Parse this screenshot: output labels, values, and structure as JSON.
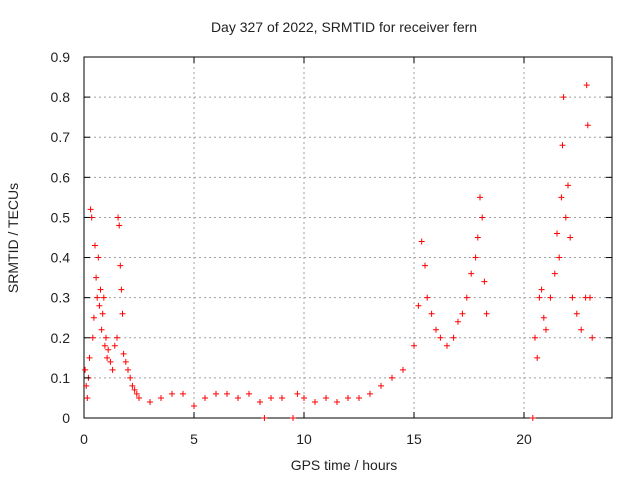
{
  "chart_data": {
    "type": "scatter",
    "title": "Day 327 of 2022, SRMTID for receiver fern",
    "xlabel": "GPS time / hours",
    "ylabel": "SRMTID / TECUs",
    "xlim": [
      0,
      24
    ],
    "ylim": [
      0,
      0.9
    ],
    "x_ticks": [
      0,
      5,
      10,
      15,
      20
    ],
    "x_tick_labels": [
      "0",
      "5",
      "10",
      "15",
      "20"
    ],
    "y_ticks": [
      0,
      0.1,
      0.2,
      0.3,
      0.4,
      0.5,
      0.6,
      0.7,
      0.8,
      0.9
    ],
    "y_tick_labels": [
      "0",
      "0.1",
      "0.2",
      "0.3",
      "0.4",
      "0.5",
      "0.6",
      "0.7",
      "0.8",
      "0.9"
    ],
    "grid": true,
    "marker": "+",
    "colors": {
      "series": "#ff0000",
      "grid": "#a0a0a0",
      "axis": "#000000"
    },
    "series": [
      {
        "name": "SRMTID",
        "points": [
          [
            0.05,
            0.12
          ],
          [
            0.1,
            0.08
          ],
          [
            0.15,
            0.05
          ],
          [
            0.2,
            0.1
          ],
          [
            0.25,
            0.15
          ],
          [
            0.3,
            0.52
          ],
          [
            0.35,
            0.5
          ],
          [
            0.4,
            0.2
          ],
          [
            0.45,
            0.25
          ],
          [
            0.5,
            0.43
          ],
          [
            0.55,
            0.35
          ],
          [
            0.6,
            0.3
          ],
          [
            0.65,
            0.4
          ],
          [
            0.7,
            0.28
          ],
          [
            0.75,
            0.32
          ],
          [
            0.8,
            0.22
          ],
          [
            0.85,
            0.26
          ],
          [
            0.9,
            0.3
          ],
          [
            0.95,
            0.18
          ],
          [
            1.0,
            0.2
          ],
          [
            1.05,
            0.15
          ],
          [
            1.1,
            0.17
          ],
          [
            1.2,
            0.14
          ],
          [
            1.3,
            0.12
          ],
          [
            1.4,
            0.18
          ],
          [
            1.5,
            0.2
          ],
          [
            1.55,
            0.5
          ],
          [
            1.6,
            0.48
          ],
          [
            1.65,
            0.38
          ],
          [
            1.7,
            0.32
          ],
          [
            1.75,
            0.26
          ],
          [
            1.8,
            0.16
          ],
          [
            1.9,
            0.14
          ],
          [
            2.0,
            0.12
          ],
          [
            2.1,
            0.1
          ],
          [
            2.2,
            0.08
          ],
          [
            2.3,
            0.07
          ],
          [
            2.4,
            0.06
          ],
          [
            2.5,
            0.05
          ],
          [
            3.0,
            0.04
          ],
          [
            3.5,
            0.05
          ],
          [
            4.0,
            0.06
          ],
          [
            4.5,
            0.06
          ],
          [
            5.0,
            0.03
          ],
          [
            5.5,
            0.05
          ],
          [
            6.0,
            0.06
          ],
          [
            6.5,
            0.06
          ],
          [
            7.0,
            0.05
          ],
          [
            7.5,
            0.06
          ],
          [
            8.0,
            0.04
          ],
          [
            8.2,
            0.0
          ],
          [
            8.5,
            0.05
          ],
          [
            9.0,
            0.05
          ],
          [
            9.5,
            0.0
          ],
          [
            9.7,
            0.06
          ],
          [
            10.0,
            0.05
          ],
          [
            10.5,
            0.04
          ],
          [
            11.0,
            0.05
          ],
          [
            11.5,
            0.04
          ],
          [
            12.0,
            0.05
          ],
          [
            12.5,
            0.05
          ],
          [
            13.0,
            0.06
          ],
          [
            13.5,
            0.08
          ],
          [
            14.0,
            0.1
          ],
          [
            14.5,
            0.12
          ],
          [
            15.0,
            0.18
          ],
          [
            15.2,
            0.28
          ],
          [
            15.35,
            0.44
          ],
          [
            15.5,
            0.38
          ],
          [
            15.6,
            0.3
          ],
          [
            15.8,
            0.26
          ],
          [
            16.0,
            0.22
          ],
          [
            16.2,
            0.2
          ],
          [
            16.5,
            0.18
          ],
          [
            16.8,
            0.2
          ],
          [
            17.0,
            0.24
          ],
          [
            17.2,
            0.26
          ],
          [
            17.4,
            0.3
          ],
          [
            17.6,
            0.36
          ],
          [
            17.8,
            0.4
          ],
          [
            17.9,
            0.45
          ],
          [
            18.0,
            0.55
          ],
          [
            18.1,
            0.5
          ],
          [
            18.2,
            0.34
          ],
          [
            18.3,
            0.26
          ],
          [
            20.4,
            0.0
          ],
          [
            20.5,
            0.2
          ],
          [
            20.6,
            0.15
          ],
          [
            20.7,
            0.3
          ],
          [
            20.8,
            0.32
          ],
          [
            20.9,
            0.25
          ],
          [
            21.0,
            0.22
          ],
          [
            21.2,
            0.3
          ],
          [
            21.4,
            0.36
          ],
          [
            21.5,
            0.46
          ],
          [
            21.6,
            0.4
          ],
          [
            21.7,
            0.55
          ],
          [
            21.75,
            0.68
          ],
          [
            21.8,
            0.8
          ],
          [
            21.9,
            0.5
          ],
          [
            22.0,
            0.58
          ],
          [
            22.1,
            0.45
          ],
          [
            22.2,
            0.3
          ],
          [
            22.4,
            0.26
          ],
          [
            22.6,
            0.22
          ],
          [
            22.8,
            0.3
          ],
          [
            22.85,
            0.83
          ],
          [
            22.9,
            0.73
          ],
          [
            23.0,
            0.3
          ],
          [
            23.1,
            0.2
          ]
        ]
      }
    ]
  }
}
